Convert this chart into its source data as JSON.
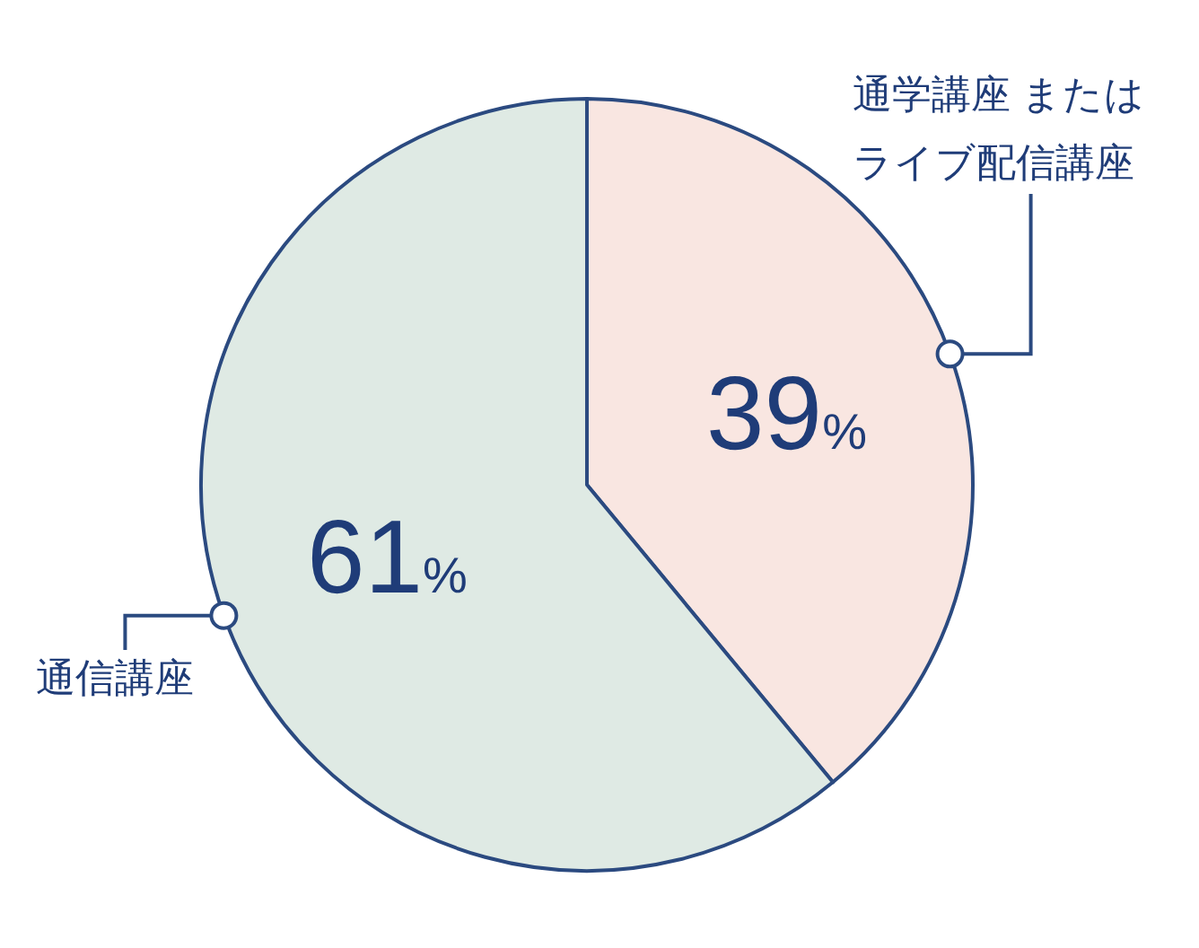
{
  "chart_data": {
    "type": "pie",
    "categories": [
      "通学講座 またはライブ配信講座",
      "通信講座"
    ],
    "value_labels": [
      "39%",
      "61%"
    ],
    "values": [
      39,
      61
    ],
    "colors": [
      "#f9e6e1",
      "#dfeae4"
    ]
  }
}
